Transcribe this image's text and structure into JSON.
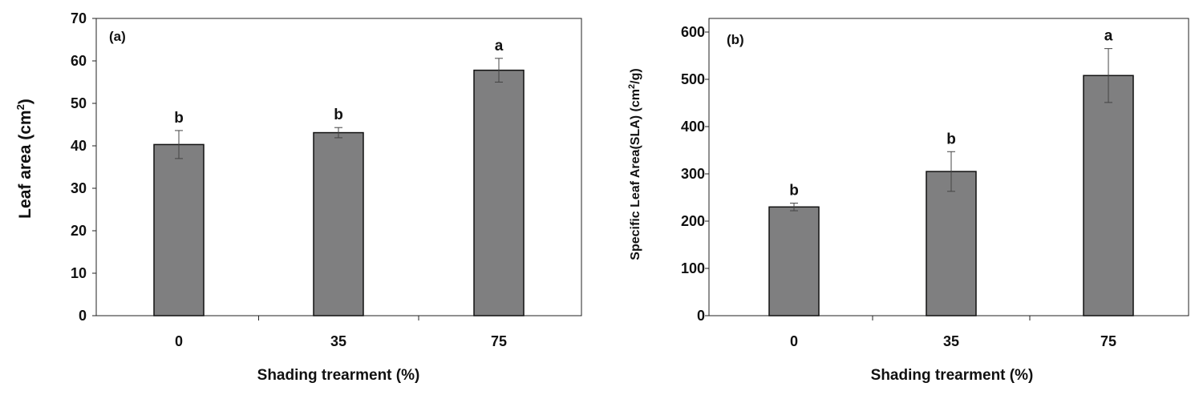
{
  "chart_data": [
    {
      "type": "bar",
      "panel_label": "(a)",
      "categories": [
        "0",
        "35",
        "75"
      ],
      "values": [
        40.3,
        43.1,
        57.8
      ],
      "errors": [
        3.3,
        1.2,
        2.8
      ],
      "significance": [
        "b",
        "b",
        "a"
      ],
      "xlabel": "Shading trearment (%)",
      "ylabel": "Leaf area (cm",
      "ylabel_sup": "2",
      "ylabel_end": ")",
      "ylim": [
        0,
        70
      ],
      "yticks": [
        "0",
        "10",
        "20",
        "30",
        "40",
        "50",
        "60",
        "70"
      ],
      "bar_color": "#7f7f80",
      "grid": false
    },
    {
      "type": "bar",
      "panel_label": "(b)",
      "categories": [
        "0",
        "35",
        "75"
      ],
      "values": [
        230,
        305,
        508
      ],
      "errors": [
        8,
        42,
        57
      ],
      "significance": [
        "b",
        "b",
        "a"
      ],
      "xlabel": "Shading trearment (%)",
      "ylabel": "Specific  Leaf Area(SLA) (cm",
      "ylabel_sup": "2",
      "ylabel_end": "/g)",
      "ylim": [
        0,
        600
      ],
      "yticks": [
        "0",
        "100",
        "200",
        "300",
        "400",
        "500",
        "600"
      ],
      "bar_color": "#7f7f80",
      "grid": false
    }
  ]
}
